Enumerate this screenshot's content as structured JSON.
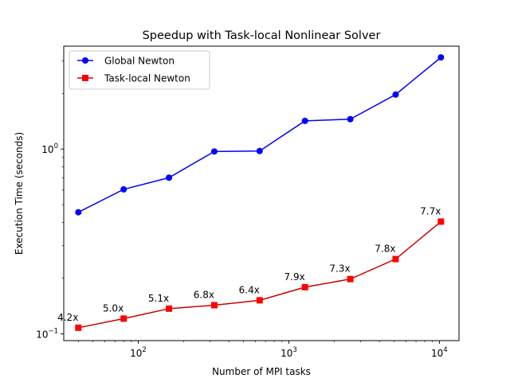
{
  "chart_data": {
    "type": "line",
    "title": "Speedup with Task-local Nonlinear Solver",
    "xlabel": "Number of MPI tasks",
    "ylabel": "Execution Time (seconds)",
    "xscale": "log",
    "yscale": "log",
    "xlim": [
      32,
      13500
    ],
    "ylim": [
      0.092,
      3.6
    ],
    "grid": false,
    "legend": "top-left",
    "x": [
      40,
      80,
      160,
      320,
      640,
      1280,
      2560,
      5120,
      10240
    ],
    "x_ticks": [
      {
        "value": 100,
        "base": "10",
        "exp": "2"
      },
      {
        "value": 1000,
        "base": "10",
        "exp": "3"
      },
      {
        "value": 10000,
        "base": "10",
        "exp": "4"
      }
    ],
    "y_ticks": [
      {
        "value": 0.1,
        "base": "10",
        "exp": "−1"
      },
      {
        "value": 1,
        "base": "10",
        "exp": "0"
      }
    ],
    "series": [
      {
        "name": "Global Newton",
        "color": "#0000ff",
        "marker": "circle",
        "values": [
          0.455,
          0.605,
          0.7,
          0.97,
          0.975,
          1.42,
          1.45,
          1.97,
          3.13
        ]
      },
      {
        "name": "Task-local Newton",
        "color": "#ff0000",
        "line_color": "#cc0000",
        "marker": "square",
        "values": [
          0.108,
          0.121,
          0.137,
          0.143,
          0.152,
          0.179,
          0.198,
          0.254,
          0.405
        ]
      }
    ],
    "annotations": [
      "4.2x",
      "5.0x",
      "5.1x",
      "6.8x",
      "6.4x",
      "7.9x",
      "7.3x",
      "7.8x",
      "7.7x"
    ]
  }
}
